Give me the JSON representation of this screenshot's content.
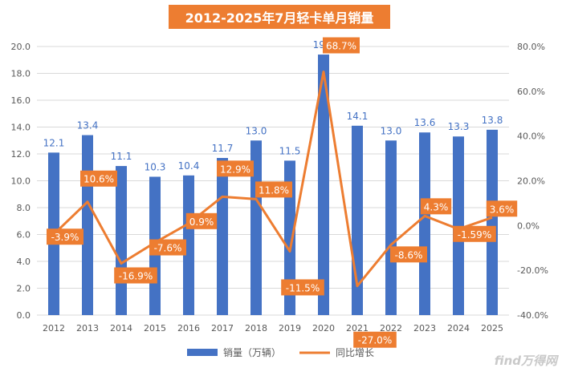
{
  "chart_data": {
    "type": "bar",
    "title": "2012-2025年7月轻卡单月销量",
    "categories": [
      "2012",
      "2013",
      "2014",
      "2015",
      "2016",
      "2017",
      "2018",
      "2019",
      "2020",
      "2021",
      "2022",
      "2023",
      "2024",
      "2025"
    ],
    "series": [
      {
        "name": "销量（万辆）",
        "type": "bar",
        "axis": "left",
        "values": [
          12.1,
          13.4,
          11.1,
          10.3,
          10.4,
          11.7,
          13.0,
          11.5,
          19.4,
          14.1,
          13.0,
          13.6,
          13.3,
          13.8
        ],
        "labels": [
          "12.1",
          "13.4",
          "11.1",
          "10.3",
          "10.4",
          "11.7",
          "13.0",
          "11.5",
          "19.4",
          "14.1",
          "13.0",
          "13.6",
          "13.3",
          "13.8"
        ]
      },
      {
        "name": "同比增长",
        "type": "line",
        "axis": "right",
        "values": [
          -3.9,
          10.6,
          -16.9,
          -7.6,
          0.9,
          12.9,
          11.8,
          -11.5,
          68.7,
          -27.0,
          -8.6,
          4.3,
          -1.59,
          3.6
        ],
        "labels": [
          "-3.9%",
          "10.6%",
          "-16.9%",
          "-7.6%",
          "0.9%",
          "12.9%",
          "11.8%",
          "-11.5%",
          "68.7%",
          "-27.0%",
          "-8.6%",
          "4.3%",
          "-1.59%",
          "3.6%"
        ]
      }
    ],
    "y_left": {
      "min": 0,
      "max": 20,
      "ticks": [
        "0.0",
        "2.0",
        "4.0",
        "6.0",
        "8.0",
        "10.0",
        "12.0",
        "14.0",
        "16.0",
        "18.0",
        "20.0"
      ]
    },
    "y_right": {
      "min": -40,
      "max": 80,
      "ticks": [
        "-40.0%",
        "-20.0%",
        "0.0%",
        "20.0%",
        "40.0%",
        "60.0%",
        "80.0%"
      ]
    },
    "grid": true,
    "legend_position": "bottom",
    "colors": {
      "bar": "#4472C4",
      "line": "#ED7D31",
      "bar_label": "#4472C4",
      "title_bg": "#ED7D31"
    }
  },
  "watermark": "find万得网"
}
